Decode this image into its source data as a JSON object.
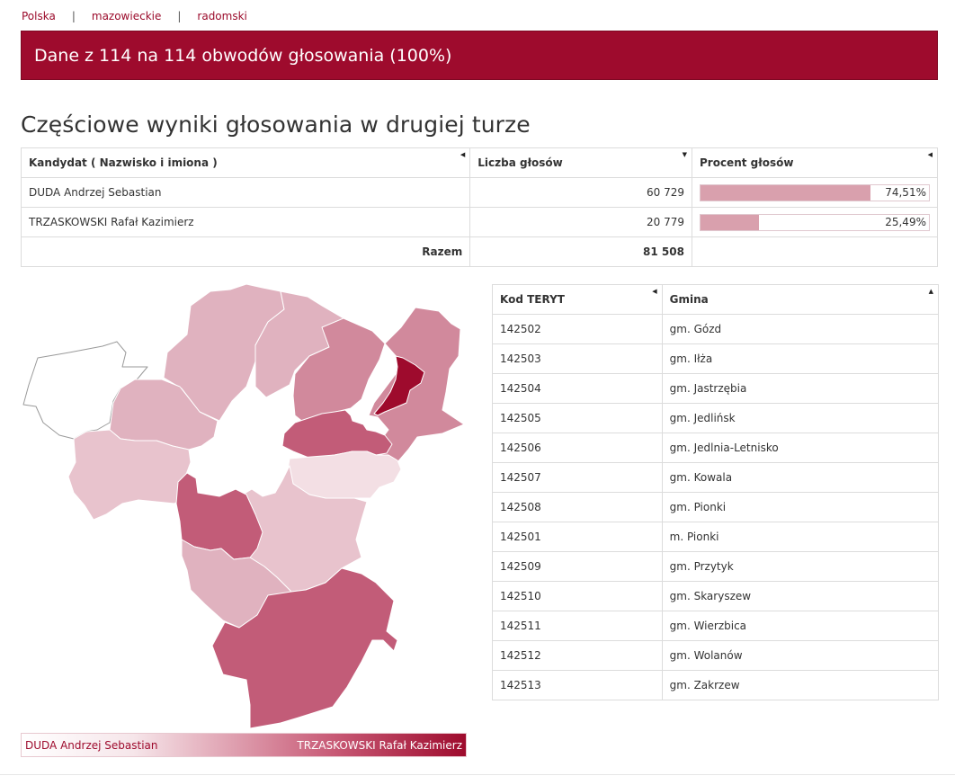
{
  "breadcrumb": {
    "items": [
      "Polska",
      "mazowieckie",
      "radomski"
    ],
    "separator": "|"
  },
  "banner": {
    "text": "Dane z 114 na 114 obwodów głosowania (100%)",
    "color": "#9e0b2d"
  },
  "section_title": "Częściowe wyniki głosowania w drugiej turze",
  "results": {
    "headers": {
      "candidate": "Kandydat ( Nazwisko i imiona )",
      "votes": "Liczba głosów",
      "percent": "Procent głosów"
    },
    "rows": [
      {
        "candidate": "DUDA Andrzej Sebastian",
        "votes": "60 729",
        "percent_label": "74,51%",
        "percent": 74.51
      },
      {
        "candidate": "TRZASKOWSKI Rafał Kazimierz",
        "votes": "20 779",
        "percent_label": "25,49%",
        "percent": 25.49
      }
    ],
    "total_label": "Razem",
    "total_value": "81 508"
  },
  "gminy": {
    "headers": {
      "code": "Kod TERYT",
      "name": "Gmina"
    },
    "rows": [
      {
        "code": "142502",
        "name": "gm. Gózd"
      },
      {
        "code": "142503",
        "name": "gm. Iłża"
      },
      {
        "code": "142504",
        "name": "gm. Jastrzębia"
      },
      {
        "code": "142505",
        "name": "gm. Jedlińsk"
      },
      {
        "code": "142506",
        "name": "gm. Jedlnia-Letnisko"
      },
      {
        "code": "142507",
        "name": "gm. Kowala"
      },
      {
        "code": "142508",
        "name": "gm. Pionki"
      },
      {
        "code": "142501",
        "name": "m. Pionki"
      },
      {
        "code": "142509",
        "name": "gm. Przytyk"
      },
      {
        "code": "142510",
        "name": "gm. Skaryszew"
      },
      {
        "code": "142511",
        "name": "gm. Wierzbica"
      },
      {
        "code": "142512",
        "name": "gm. Wolanów"
      },
      {
        "code": "142513",
        "name": "gm. Zakrzew"
      }
    ]
  },
  "map": {
    "colors": {
      "light": "#f3dfe4",
      "pale": "#e8c3cd",
      "mid": "#e0b2bf",
      "medium": "#d1899c",
      "dark": "#c25c78",
      "darkest": "#9e0b2d",
      "outline": "#ffffff",
      "empty_stroke": "#9a9a9a"
    }
  },
  "legend": {
    "left": "DUDA Andrzej Sebastian",
    "right": "TRZASKOWSKI Rafał Kazimierz"
  }
}
